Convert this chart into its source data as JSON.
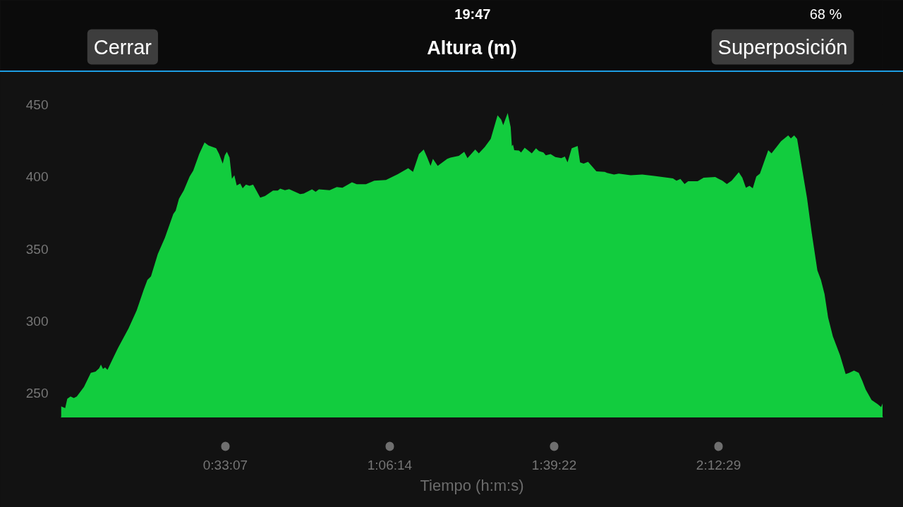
{
  "chart_data": {
    "type": "area",
    "title": "Altura (m)",
    "xlabel": "Tiempo (h:m:s)",
    "annotations": [
      "19:47",
      "68 %",
      "Cerrar",
      "Superposición"
    ],
    "x": [
      0.0,
      0.014,
      0.021,
      0.032,
      0.043,
      0.053,
      0.077,
      0.1,
      0.116,
      0.128,
      0.134,
      0.141,
      0.148,
      0.156,
      0.191,
      0.227,
      0.254,
      0.278,
      0.29,
      0.302,
      0.325,
      0.349,
      0.377,
      0.385,
      0.396,
      0.412,
      0.432,
      0.444,
      0.464,
      0.482,
      0.495,
      0.521,
      0.531,
      0.543,
      0.55,
      0.557,
      0.566,
      0.574,
      0.582,
      0.59,
      0.602,
      0.61,
      0.621,
      0.633,
      0.645,
      0.669,
      0.685,
      0.712,
      0.728,
      0.736,
      0.752,
      0.766,
      0.803,
      0.815,
      0.843,
      0.855,
      0.866,
      0.902,
      0.926,
      0.945,
      0.977,
      0.993,
      1.024,
      1.052,
      1.091,
      1.131,
      1.166,
      1.182,
      1.202,
      1.218,
      1.23,
      1.241,
      1.249,
      1.265,
      1.297,
      1.308,
      1.336,
      1.354,
      1.365,
      1.391,
      1.403,
      1.423,
      1.443,
      1.466,
      1.478,
      1.485,
      1.5,
      1.51,
      1.514,
      1.518,
      1.522,
      1.538,
      1.545,
      1.557,
      1.581,
      1.595,
      1.605,
      1.62,
      1.628,
      1.644,
      1.66,
      1.68,
      1.692,
      1.701,
      1.715,
      1.735,
      1.743,
      1.755,
      1.77,
      1.798,
      1.826,
      1.834,
      1.857,
      1.873,
      1.913,
      1.952,
      1.992,
      2.055,
      2.067,
      2.08,
      2.094,
      2.106,
      2.138,
      2.158,
      2.197,
      2.221,
      2.236,
      2.252,
      2.276,
      2.288,
      2.3,
      2.312,
      2.323,
      2.335,
      2.347,
      2.359,
      2.375,
      2.386,
      2.418,
      2.442,
      2.451,
      2.462,
      2.472,
      2.485,
      2.505,
      2.521,
      2.54,
      2.552,
      2.564,
      2.576,
      2.592,
      2.616,
      2.635,
      2.647,
      2.663,
      2.679,
      2.691,
      2.702,
      2.722,
      2.742,
      2.754,
      2.759
    ],
    "values": [
      240.9,
      239.7,
      246.2,
      247.8,
      246.7,
      247.8,
      254.4,
      264.2,
      265.0,
      267.4,
      269.9,
      266.9,
      267.9,
      266.3,
      281.3,
      295.1,
      307.4,
      322.0,
      328.5,
      331.0,
      346.5,
      357.9,
      374.2,
      376.6,
      384.8,
      390.5,
      400.3,
      404.3,
      415.8,
      423.9,
      421.8,
      419.8,
      415.8,
      409.2,
      414.9,
      417.4,
      413.3,
      398.7,
      401.1,
      394.1,
      395.4,
      392.1,
      394.6,
      393.8,
      394.6,
      385.6,
      386.7,
      390.5,
      390.5,
      391.8,
      390.8,
      391.5,
      388.0,
      388.4,
      391.3,
      389.6,
      391.3,
      390.8,
      392.9,
      392.4,
      396.2,
      394.9,
      394.9,
      397.3,
      397.8,
      401.9,
      406.0,
      403.5,
      415.8,
      419.0,
      413.3,
      407.6,
      412.5,
      407.6,
      412.5,
      413.3,
      414.6,
      417.4,
      413.0,
      419.0,
      416.3,
      420.7,
      426.3,
      442.7,
      439.7,
      435.8,
      444.3,
      434.5,
      421.4,
      422.3,
      418.5,
      418.2,
      416.9,
      420.2,
      416.3,
      419.8,
      417.9,
      416.9,
      414.9,
      415.8,
      413.7,
      413.0,
      414.1,
      410.0,
      419.8,
      421.4,
      410.0,
      409.2,
      410.4,
      403.8,
      403.5,
      402.7,
      401.6,
      402.2,
      401.1,
      401.6,
      400.6,
      398.9,
      397.3,
      398.6,
      395.0,
      397.0,
      397.0,
      399.4,
      399.9,
      397.3,
      395.0,
      397.3,
      403.2,
      399.4,
      392.4,
      393.8,
      392.1,
      400.3,
      402.2,
      409.2,
      418.5,
      416.3,
      424.7,
      428.8,
      426.7,
      428.8,
      426.3,
      410.0,
      385.6,
      361.2,
      335.1,
      328.5,
      318.8,
      302.5,
      289.4,
      276.4,
      263.3,
      264.2,
      265.8,
      264.2,
      258.5,
      252.7,
      245.4,
      242.5,
      240.5,
      243.0
    ],
    "color": "#12cc3e",
    "xlim": [
      0,
      2.76
    ],
    "ylim": [
      233.5,
      450
    ],
    "xticks": [
      {
        "value": 0.5519,
        "label": "0:33:07"
      },
      {
        "value": 1.1039,
        "label": "1:06:14"
      },
      {
        "value": 1.6561,
        "label": "1:39:22"
      },
      {
        "value": 2.2081,
        "label": "2:12:29"
      }
    ],
    "yticks": [
      250,
      300,
      350,
      400,
      450
    ]
  }
}
